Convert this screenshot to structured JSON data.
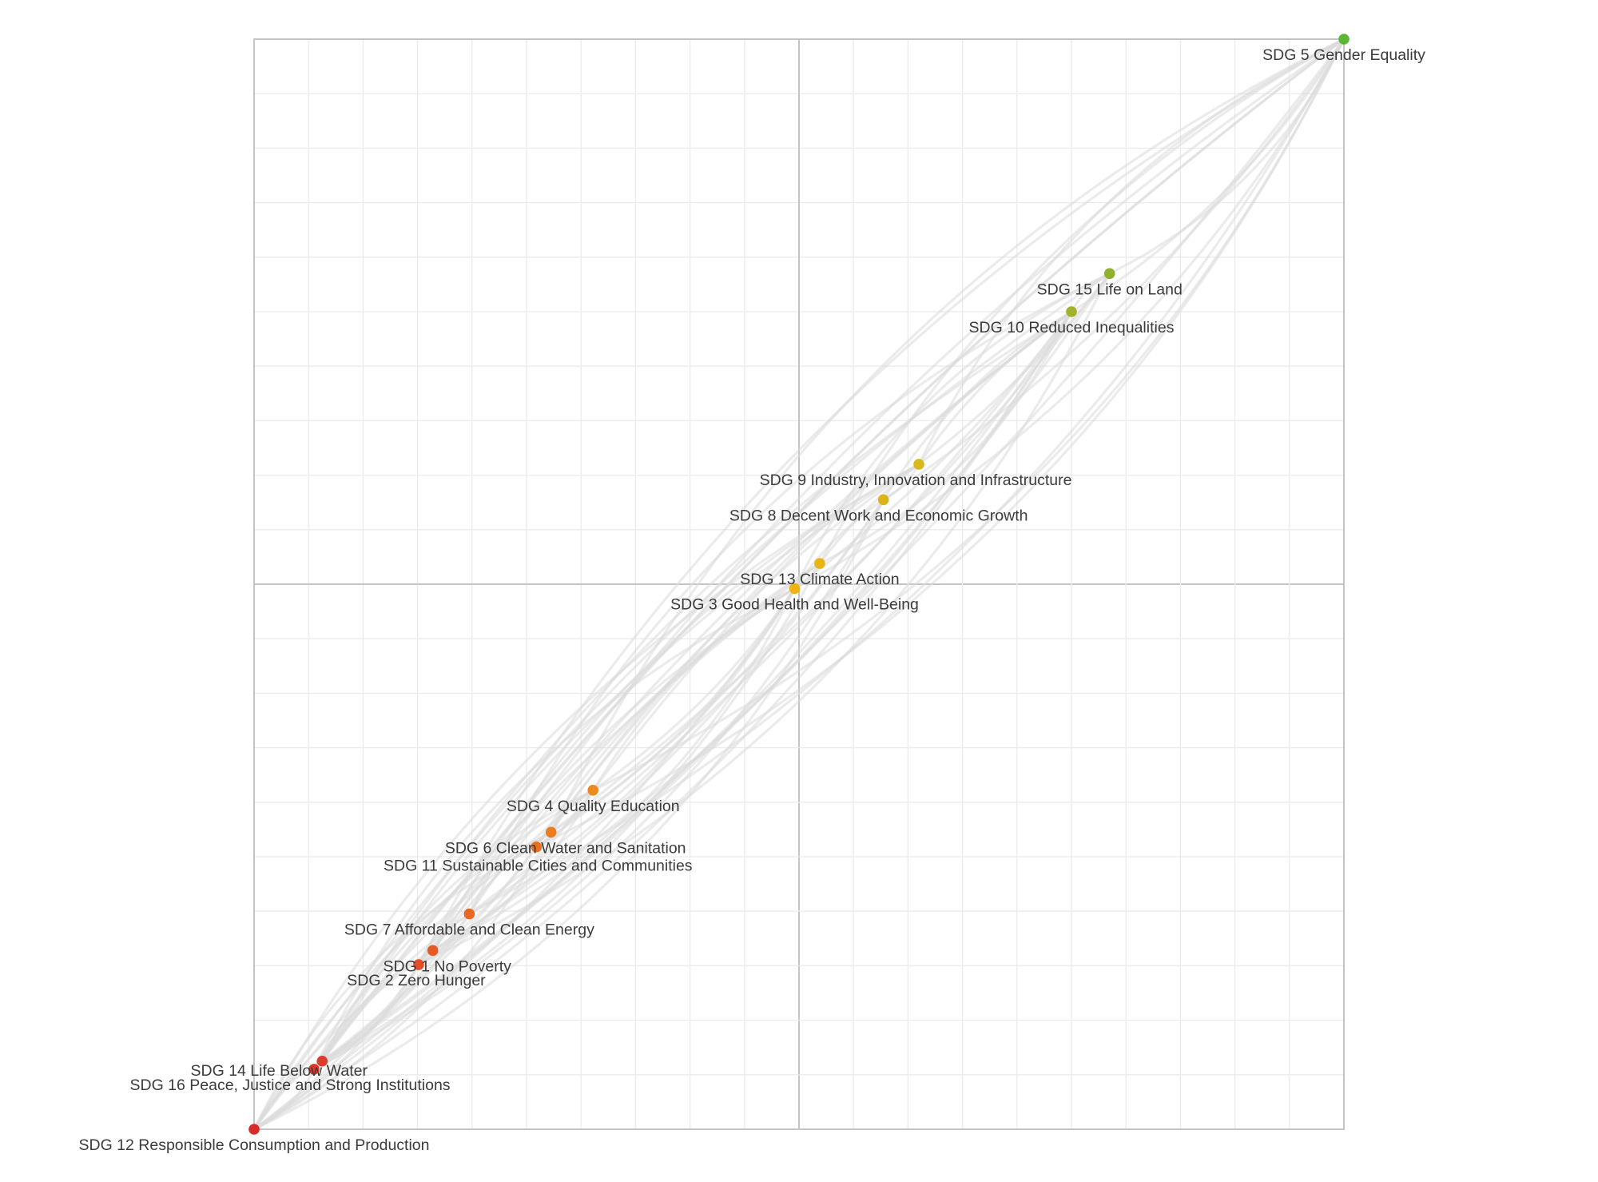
{
  "chart_data": {
    "type": "scatter",
    "title": "",
    "xlabel": "",
    "ylabel": "",
    "xlim": [
      0,
      20
    ],
    "ylim": [
      0,
      20
    ],
    "grid": true,
    "points": [
      {
        "id": "sdg5",
        "label": "SDG 5 Gender Equality",
        "x": 20.0,
        "y": 20.0,
        "color": "#5cb636"
      },
      {
        "id": "sdg15",
        "label": "SDG 15 Life on Land",
        "x": 15.7,
        "y": 15.7,
        "color": "#8fb02e"
      },
      {
        "id": "sdg10",
        "label": "SDG 10 Reduced Inequalities",
        "x": 15.0,
        "y": 15.0,
        "color": "#a3b22c"
      },
      {
        "id": "sdg9",
        "label": "SDG 9 Industry, Innovation and Infrastructure",
        "x": 12.2,
        "y": 12.2,
        "color": "#d6b91c"
      },
      {
        "id": "sdg8",
        "label": "SDG 8 Decent Work and Economic Growth",
        "x": 11.55,
        "y": 11.55,
        "color": "#dcb41a"
      },
      {
        "id": "sdg13",
        "label": "SDG 13 Climate Action",
        "x": 10.38,
        "y": 10.38,
        "color": "#e8b514"
      },
      {
        "id": "sdg3",
        "label": "SDG 3 Good Health and Well-Being",
        "x": 9.92,
        "y": 9.92,
        "color": "#efb412"
      },
      {
        "id": "sdg4",
        "label": "SDG 4 Quality Education",
        "x": 6.22,
        "y": 6.22,
        "color": "#ec8a1f"
      },
      {
        "id": "sdg6",
        "label": "SDG 6 Clean Water and Sanitation",
        "x": 5.45,
        "y": 5.45,
        "color": "#ea7d20"
      },
      {
        "id": "sdg11",
        "label": "SDG 11 Sustainable Cities and Communities",
        "x": 5.18,
        "y": 5.18,
        "color": "#e87020"
      },
      {
        "id": "sdg7",
        "label": "SDG 7 Affordable and Clean Energy",
        "x": 3.95,
        "y": 3.95,
        "color": "#e86724"
      },
      {
        "id": "sdg1",
        "label": "SDG 1 No Poverty",
        "x": 3.28,
        "y": 3.28,
        "color": "#e65a26"
      },
      {
        "id": "sdg2",
        "label": "SDG 2 Zero Hunger",
        "x": 3.02,
        "y": 3.02,
        "color": "#e44f27"
      },
      {
        "id": "sdg14",
        "label": "SDG 14 Life Below Water",
        "x": 1.25,
        "y": 1.25,
        "color": "#df3b2a"
      },
      {
        "id": "sdg16",
        "label": "SDG 16 Peace, Justice and Strong Institutions",
        "x": 1.1,
        "y": 1.1,
        "color": "#dd362a"
      },
      {
        "id": "sdg12",
        "label": "SDG 12 Responsible Consumption and Production",
        "x": 0.0,
        "y": 0.0,
        "color": "#d92b2b"
      }
    ],
    "links": [
      [
        "sdg12",
        "sdg5"
      ],
      [
        "sdg12",
        "sdg15"
      ],
      [
        "sdg12",
        "sdg10"
      ],
      [
        "sdg12",
        "sdg9"
      ],
      [
        "sdg12",
        "sdg8"
      ],
      [
        "sdg12",
        "sdg13"
      ],
      [
        "sdg12",
        "sdg3"
      ],
      [
        "sdg12",
        "sdg4"
      ],
      [
        "sdg12",
        "sdg6"
      ],
      [
        "sdg12",
        "sdg11"
      ],
      [
        "sdg12",
        "sdg7"
      ],
      [
        "sdg12",
        "sdg1"
      ],
      [
        "sdg12",
        "sdg2"
      ],
      [
        "sdg12",
        "sdg14"
      ],
      [
        "sdg12",
        "sdg16"
      ],
      [
        "sdg16",
        "sdg5"
      ],
      [
        "sdg16",
        "sdg15"
      ],
      [
        "sdg16",
        "sdg10"
      ],
      [
        "sdg16",
        "sdg8"
      ],
      [
        "sdg16",
        "sdg3"
      ],
      [
        "sdg16",
        "sdg4"
      ],
      [
        "sdg16",
        "sdg6"
      ],
      [
        "sdg16",
        "sdg7"
      ],
      [
        "sdg16",
        "sdg1"
      ],
      [
        "sdg16",
        "sdg2"
      ],
      [
        "sdg14",
        "sdg5"
      ],
      [
        "sdg14",
        "sdg10"
      ],
      [
        "sdg14",
        "sdg9"
      ],
      [
        "sdg14",
        "sdg13"
      ],
      [
        "sdg14",
        "sdg4"
      ],
      [
        "sdg14",
        "sdg11"
      ],
      [
        "sdg14",
        "sdg7"
      ],
      [
        "sdg14",
        "sdg2"
      ],
      [
        "sdg2",
        "sdg5"
      ],
      [
        "sdg2",
        "sdg15"
      ],
      [
        "sdg2",
        "sdg10"
      ],
      [
        "sdg2",
        "sdg8"
      ],
      [
        "sdg2",
        "sdg3"
      ],
      [
        "sdg2",
        "sdg4"
      ],
      [
        "sdg2",
        "sdg6"
      ],
      [
        "sdg2",
        "sdg1"
      ],
      [
        "sdg1",
        "sdg5"
      ],
      [
        "sdg1",
        "sdg10"
      ],
      [
        "sdg1",
        "sdg9"
      ],
      [
        "sdg1",
        "sdg3"
      ],
      [
        "sdg1",
        "sdg4"
      ],
      [
        "sdg1",
        "sdg11"
      ],
      [
        "sdg1",
        "sdg7"
      ],
      [
        "sdg7",
        "sdg5"
      ],
      [
        "sdg7",
        "sdg15"
      ],
      [
        "sdg7",
        "sdg10"
      ],
      [
        "sdg7",
        "sdg13"
      ],
      [
        "sdg7",
        "sdg3"
      ],
      [
        "sdg7",
        "sdg6"
      ],
      [
        "sdg11",
        "sdg5"
      ],
      [
        "sdg11",
        "sdg10"
      ],
      [
        "sdg11",
        "sdg8"
      ],
      [
        "sdg11",
        "sdg3"
      ],
      [
        "sdg11",
        "sdg4"
      ],
      [
        "sdg6",
        "sdg5"
      ],
      [
        "sdg6",
        "sdg15"
      ],
      [
        "sdg6",
        "sdg9"
      ],
      [
        "sdg6",
        "sdg3"
      ],
      [
        "sdg6",
        "sdg4"
      ],
      [
        "sdg4",
        "sdg5"
      ],
      [
        "sdg4",
        "sdg10"
      ],
      [
        "sdg4",
        "sdg3"
      ],
      [
        "sdg4",
        "sdg13"
      ],
      [
        "sdg3",
        "sdg5"
      ],
      [
        "sdg3",
        "sdg15"
      ],
      [
        "sdg3",
        "sdg10"
      ],
      [
        "sdg3",
        "sdg8"
      ],
      [
        "sdg3",
        "sdg13"
      ],
      [
        "sdg13",
        "sdg5"
      ],
      [
        "sdg13",
        "sdg10"
      ],
      [
        "sdg13",
        "sdg9"
      ],
      [
        "sdg8",
        "sdg5"
      ],
      [
        "sdg8",
        "sdg10"
      ],
      [
        "sdg8",
        "sdg9"
      ],
      [
        "sdg9",
        "sdg5"
      ],
      [
        "sdg9",
        "sdg15"
      ],
      [
        "sdg9",
        "sdg10"
      ],
      [
        "sdg10",
        "sdg5"
      ],
      [
        "sdg10",
        "sdg15"
      ],
      [
        "sdg15",
        "sdg5"
      ]
    ]
  }
}
